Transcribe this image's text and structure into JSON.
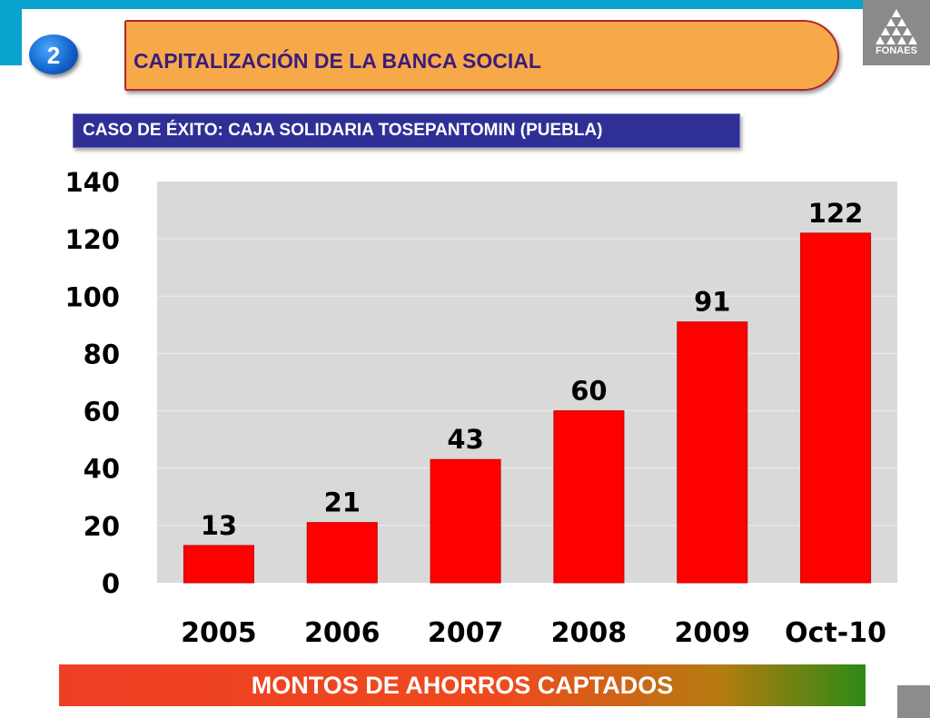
{
  "slide": {
    "number": "2",
    "title": "CAPITALIZACIÓN DE LA BANCA SOCIAL",
    "subtitle": "CASO DE ÉXITO: CAJA SOLIDARIA TOSEPANTOMIN (PUEBLA)",
    "footer": "MONTOS DE AHORROS CAPTADOS",
    "logo_text": "FONAES"
  },
  "colors": {
    "bar": "#ff0000",
    "plot_background": "#d9d9d9",
    "top_bar": "#0aa3cf"
  },
  "chart_data": {
    "type": "bar",
    "categories": [
      "2005",
      "2006",
      "2007",
      "2008",
      "2009",
      "Oct-10"
    ],
    "values": [
      13,
      21,
      43,
      60,
      91,
      122
    ],
    "data_labels": [
      "13",
      "21",
      "43",
      "60",
      "91",
      "122"
    ],
    "ylim": [
      0,
      140
    ],
    "yticks": [
      "0",
      "20",
      "40",
      "60",
      "80",
      "100",
      "120",
      "140"
    ],
    "grid": true,
    "legend": "none"
  }
}
